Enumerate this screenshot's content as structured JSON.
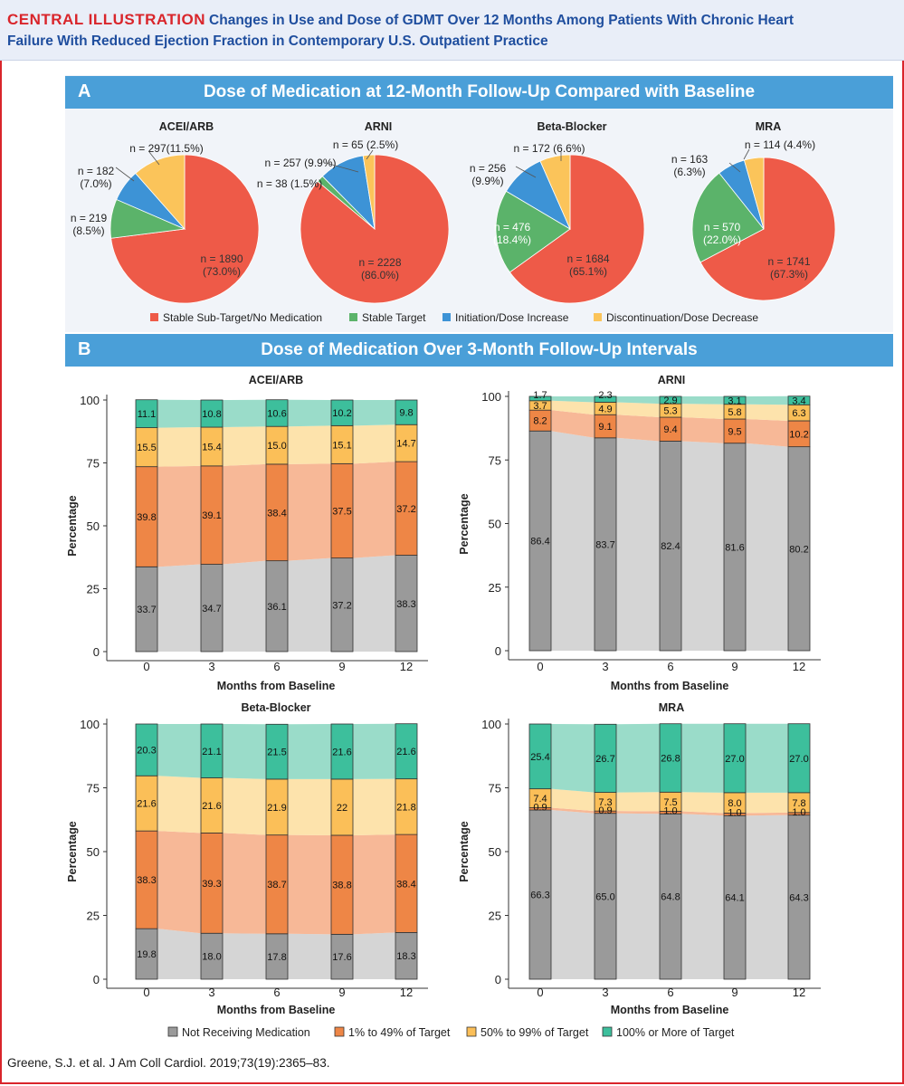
{
  "header": {
    "tag": "CENTRAL ILLUSTRATION",
    "title_line1": "Changes in Use and Dose of GDMT Over 12 Months Among Patients With Chronic Heart",
    "title_line2": "Failure With Reduced Ejection Fraction in Contemporary U.S. Outpatient Practice"
  },
  "panel_a": {
    "letter": "A",
    "title": "Dose of Medication at 12-Month Follow-Up Compared with Baseline"
  },
  "panel_b": {
    "letter": "B",
    "title": "Dose of Medication Over 3-Month Follow-Up Intervals"
  },
  "colors": {
    "pie_red": "#ee5a48",
    "pie_green": "#5bb36a",
    "pie_blue": "#3d93d6",
    "pie_yellow": "#fbc45a",
    "gray": "#9a9a9a",
    "orange": "#ee8646",
    "yellow": "#fbbf58",
    "teal": "#3dbf9c",
    "flow_gray": "#d0d0d0",
    "flow_orange": "#f6b08c",
    "flow_yellow": "#fde0a3",
    "flow_teal": "#8fd8c3",
    "band": "#4a9fd8",
    "header_text": "#1f4e9e",
    "accent_red": "#d9252b"
  },
  "chart_data": [
    {
      "type": "pie",
      "title": "ACEI/ARB",
      "categories": [
        "Stable Sub-Target/No Medication",
        "Stable Target",
        "Initiation/Dose Increase",
        "Discontinuation/Dose Decrease"
      ],
      "values": [
        73.0,
        8.5,
        7.0,
        11.5
      ],
      "labels": [
        {
          "line1": "n = 1890",
          "line2": "(73.0%)"
        },
        {
          "line1": "n = 219",
          "line2": "(8.5%)"
        },
        {
          "line1": "n = 182",
          "line2": "(7.0%)"
        },
        {
          "line1": "n = 297(11.5%)",
          "line2": ""
        }
      ]
    },
    {
      "type": "pie",
      "title": "ARNI",
      "categories": [
        "Stable Sub-Target/No Medication",
        "Stable Target",
        "Initiation/Dose Increase",
        "Discontinuation/Dose Decrease"
      ],
      "values": [
        86.0,
        1.5,
        9.9,
        2.5
      ],
      "labels": [
        {
          "line1": "n = 2228",
          "line2": "(86.0%)"
        },
        {
          "line1": "n = 38 (1.5%)",
          "line2": ""
        },
        {
          "line1": "n = 257 (9.9%)",
          "line2": ""
        },
        {
          "line1": "n = 65 (2.5%)",
          "line2": ""
        }
      ]
    },
    {
      "type": "pie",
      "title": "Beta-Blocker",
      "categories": [
        "Stable Sub-Target/No Medication",
        "Stable Target",
        "Initiation/Dose Increase",
        "Discontinuation/Dose Decrease"
      ],
      "values": [
        65.1,
        18.4,
        9.9,
        6.6
      ],
      "labels": [
        {
          "line1": "n = 1684",
          "line2": "(65.1%)"
        },
        {
          "line1": "n = 476",
          "line2": "(18.4%)"
        },
        {
          "line1": "n = 256",
          "line2": "(9.9%)"
        },
        {
          "line1": "n = 172 (6.6%)",
          "line2": ""
        }
      ]
    },
    {
      "type": "pie",
      "title": "MRA",
      "categories": [
        "Stable Sub-Target/No Medication",
        "Stable Target",
        "Initiation/Dose Increase",
        "Discontinuation/Dose Decrease"
      ],
      "values": [
        67.3,
        22.0,
        6.3,
        4.4
      ],
      "labels": [
        {
          "line1": "n = 1741",
          "line2": "(67.3%)"
        },
        {
          "line1": "n = 570",
          "line2": "(22.0%)"
        },
        {
          "line1": "n = 163",
          "line2": "(6.3%)"
        },
        {
          "line1": "n = 114 (4.4%)",
          "line2": ""
        }
      ]
    },
    {
      "type": "bar",
      "stacked": true,
      "title": "ACEI/ARB",
      "xlabel": "Months from Baseline",
      "ylabel": "Percentage",
      "ylim": [
        0,
        100
      ],
      "yticks": [
        0,
        25,
        50,
        75,
        100
      ],
      "categories": [
        "0",
        "3",
        "6",
        "9",
        "12"
      ],
      "series": [
        {
          "name": "Not Receiving Medication",
          "values": [
            33.7,
            34.7,
            36.1,
            37.2,
            38.3
          ],
          "labels": [
            "33.7",
            "34.7",
            "36.1",
            "37.2",
            "38.3"
          ]
        },
        {
          "name": "1% to 49% of Target",
          "values": [
            39.8,
            39.1,
            38.4,
            37.5,
            37.2
          ],
          "labels": [
            "39.8",
            "39.1",
            "38.4",
            "37.5",
            "37.2"
          ]
        },
        {
          "name": "50% to 99% of Target",
          "values": [
            15.5,
            15.4,
            15.0,
            15.1,
            14.7
          ],
          "labels": [
            "15.5",
            "15.4",
            "15.0",
            "15.1",
            "14.7"
          ]
        },
        {
          "name": "100% or More of Target",
          "values": [
            11.1,
            10.8,
            10.6,
            10.2,
            9.8
          ],
          "labels": [
            "11.1",
            "10.8",
            "10.6",
            "10.2",
            "9.8"
          ]
        }
      ]
    },
    {
      "type": "bar",
      "stacked": true,
      "title": "ARNI",
      "xlabel": "Months from Baseline",
      "ylabel": "Percentage",
      "ylim": [
        0,
        100
      ],
      "yticks": [
        0,
        25,
        50,
        75,
        100
      ],
      "categories": [
        "0",
        "3",
        "6",
        "9",
        "12"
      ],
      "series": [
        {
          "name": "Not Receiving Medication",
          "values": [
            86.4,
            83.7,
            82.4,
            81.6,
            80.2
          ],
          "labels": [
            "86.4",
            "83.7",
            "82.4",
            "81.6",
            "80.2"
          ]
        },
        {
          "name": "1% to 49% of Target",
          "values": [
            8.2,
            9.1,
            9.4,
            9.5,
            10.2
          ],
          "labels": [
            "8.2",
            "9.1",
            "9.4",
            "9.5",
            "10.2"
          ]
        },
        {
          "name": "50% to 99% of Target",
          "values": [
            3.7,
            4.9,
            5.3,
            5.8,
            6.3
          ],
          "labels": [
            "3.7",
            "4.9",
            "5.3",
            "5.8",
            "6.3"
          ]
        },
        {
          "name": "100% or More of Target",
          "values": [
            1.7,
            2.3,
            2.9,
            3.1,
            3.4
          ],
          "labels": [
            "1.7",
            "2.3",
            "2.9",
            "3.1",
            "3.4"
          ]
        }
      ]
    },
    {
      "type": "bar",
      "stacked": true,
      "title": "Beta-Blocker",
      "xlabel": "Months from Baseline",
      "ylabel": "Percentage",
      "ylim": [
        0,
        100
      ],
      "yticks": [
        0,
        25,
        50,
        75,
        100
      ],
      "categories": [
        "0",
        "3",
        "6",
        "9",
        "12"
      ],
      "series": [
        {
          "name": "Not Receiving Medication",
          "values": [
            19.8,
            18.0,
            17.8,
            17.6,
            18.3
          ],
          "labels": [
            "19.8",
            "18.0",
            "17.8",
            "17.6",
            "18.3"
          ]
        },
        {
          "name": "1% to 49% of Target",
          "values": [
            38.3,
            39.3,
            38.7,
            38.8,
            38.4
          ],
          "labels": [
            "38.3",
            "39.3",
            "38.7",
            "38.8",
            "38.4"
          ]
        },
        {
          "name": "50% to 99% of Target",
          "values": [
            21.6,
            21.6,
            21.9,
            22.0,
            21.8
          ],
          "labels": [
            "21.6",
            "21.6",
            "21.9",
            "22",
            "21.8"
          ]
        },
        {
          "name": "100% or More of Target",
          "values": [
            20.3,
            21.1,
            21.5,
            21.6,
            21.6
          ],
          "labels": [
            "20.3",
            "21.1",
            "21.5",
            "21.6",
            "21.6"
          ]
        }
      ]
    },
    {
      "type": "bar",
      "stacked": true,
      "title": "MRA",
      "xlabel": "Months from Baseline",
      "ylabel": "Percentage",
      "ylim": [
        0,
        100
      ],
      "yticks": [
        0,
        25,
        50,
        75,
        100
      ],
      "categories": [
        "0",
        "3",
        "6",
        "9",
        "12"
      ],
      "series": [
        {
          "name": "Not Receiving Medication",
          "values": [
            66.3,
            65.0,
            64.8,
            64.1,
            64.3
          ],
          "labels": [
            "66.3",
            "65.0",
            "64.8",
            "64.1",
            "64.3"
          ]
        },
        {
          "name": "1% to 49% of Target",
          "values": [
            0.9,
            0.9,
            1.0,
            1.0,
            1.0
          ],
          "labels": [
            "0.9",
            "0.9",
            "1.0",
            "1.0",
            "1.0"
          ]
        },
        {
          "name": "50% to 99% of Target",
          "values": [
            7.4,
            7.3,
            7.5,
            8.0,
            7.8
          ],
          "labels": [
            "7.4",
            "7.3",
            "7.5",
            "8.0",
            "7.8"
          ]
        },
        {
          "name": "100% or More of Target",
          "values": [
            25.4,
            26.7,
            26.8,
            27.0,
            27.0
          ],
          "labels": [
            "25.4",
            "26.7",
            "26.8",
            "27.0",
            "27.0"
          ]
        }
      ]
    }
  ],
  "legend_a": [
    "Stable Sub-Target/No Medication",
    "Stable Target",
    "Initiation/Dose Increase",
    "Discontinuation/Dose Decrease"
  ],
  "legend_b": [
    "Not Receiving Medication",
    "1% to 49% of Target",
    "50% to 99% of Target",
    "100% or More of Target"
  ],
  "citation": "Greene, S.J. et al. J Am Coll Cardiol. 2019;73(19):2365–83."
}
